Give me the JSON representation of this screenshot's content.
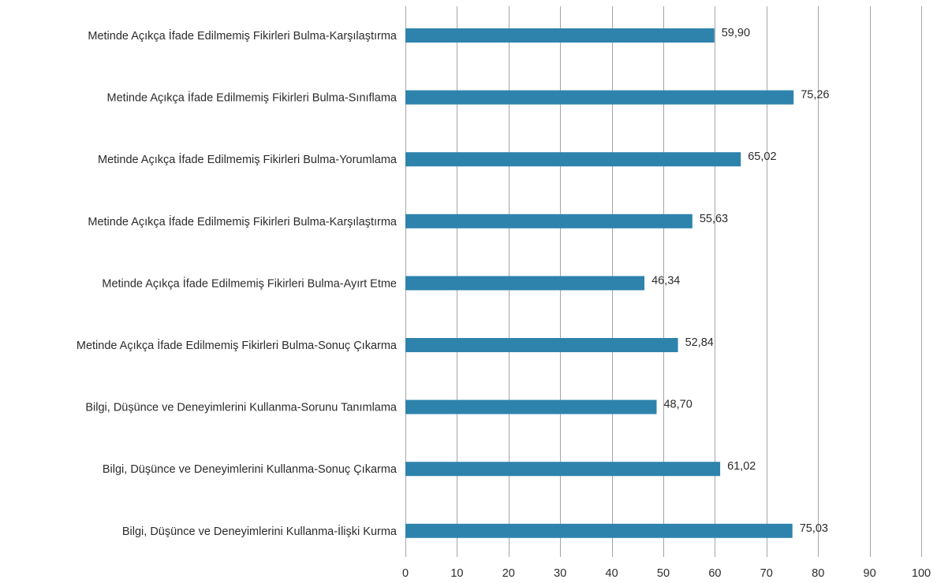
{
  "chart_data": {
    "type": "bar",
    "orientation": "horizontal",
    "categories": [
      "Metinde Açıkça İfade Edilmemiş Fikirleri Bulma-Karşılaştırma",
      "Metinde Açıkça İfade Edilmemiş Fikirleri Bulma-Sınıflama",
      "Metinde Açıkça İfade Edilmemiş Fikirleri Bulma-Yorumlama",
      "Metinde Açıkça İfade Edilmemiş Fikirleri Bulma-Karşılaştırma",
      "Metinde Açıkça İfade Edilmemiş Fikirleri Bulma-Ayırt Etme",
      "Metinde Açıkça İfade Edilmemiş Fikirleri Bulma-Sonuç Çıkarma",
      "Bilgi, Düşünce ve Deneyimlerini Kullanma-Sorunu Tanımlama",
      "Bilgi, Düşünce ve Deneyimlerini Kullanma-Sonuç Çıkarma",
      "Bilgi, Düşünce ve Deneyimlerini Kullanma-İlişki Kurma"
    ],
    "values": [
      59.9,
      75.26,
      65.02,
      55.63,
      46.34,
      52.84,
      48.7,
      61.02,
      75.03
    ],
    "value_labels": [
      "59,90",
      "75,26",
      "65,02",
      "55,63",
      "46,34",
      "52,84",
      "48,70",
      "61,02",
      "75,03"
    ],
    "xlim": [
      0,
      100
    ],
    "x_ticks": [
      "0",
      "10",
      "20",
      "30",
      "40",
      "50",
      "60",
      "70",
      "80",
      "90",
      "100"
    ],
    "bar_color": "#2e83ad",
    "grid": "vertical",
    "title": "",
    "xlabel": "",
    "ylabel": ""
  }
}
